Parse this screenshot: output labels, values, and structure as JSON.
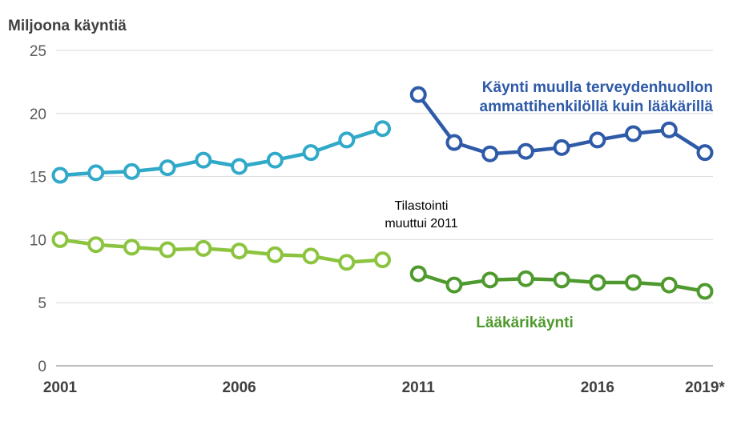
{
  "chart_data": {
    "type": "line",
    "ylabel": "Miljoona käyntiä",
    "ylim": [
      0,
      25
    ],
    "yticks": [
      0,
      5,
      10,
      15,
      20,
      25
    ],
    "xlim": [
      2001,
      2019
    ],
    "xtick_labels": [
      {
        "x": 2001,
        "label": "2001"
      },
      {
        "x": 2006,
        "label": "2006"
      },
      {
        "x": 2011,
        "label": "2011"
      },
      {
        "x": 2016,
        "label": "2016"
      },
      {
        "x": 2019,
        "label": "2019*"
      }
    ],
    "grid": true,
    "annotation": [
      "Tilastointi",
      "muuttui 2011"
    ],
    "series": [
      {
        "key": "nurse_old",
        "color": "#31a9c9",
        "x": [
          2001,
          2002,
          2003,
          2004,
          2005,
          2006,
          2007,
          2008,
          2009,
          2010
        ],
        "values": [
          15.1,
          15.3,
          15.4,
          15.7,
          16.3,
          15.8,
          16.3,
          16.9,
          17.9,
          18.8
        ]
      },
      {
        "key": "nurse_new",
        "name": "Käynti muulla terveydenhuollon ammattihenkilöllä kuin lääkärillä",
        "name_lines": [
          "Käynti muulla terveydenhuollon",
          "ammattihenkilöllä kuin lääkärillä"
        ],
        "color": "#2e5aa8",
        "x": [
          2011,
          2012,
          2013,
          2014,
          2015,
          2016,
          2017,
          2018,
          2019
        ],
        "values": [
          21.5,
          17.7,
          16.8,
          17.0,
          17.3,
          17.9,
          18.4,
          18.7,
          16.9
        ]
      },
      {
        "key": "doctor_old",
        "color": "#8cc43f",
        "x": [
          2001,
          2002,
          2003,
          2004,
          2005,
          2006,
          2007,
          2008,
          2009,
          2010
        ],
        "values": [
          10.0,
          9.6,
          9.4,
          9.2,
          9.3,
          9.1,
          8.8,
          8.7,
          8.2,
          8.4
        ]
      },
      {
        "key": "doctor_new",
        "name": "Lääkärikäynti",
        "color": "#4f9a2e",
        "x": [
          2011,
          2012,
          2013,
          2014,
          2015,
          2016,
          2017,
          2018,
          2019
        ],
        "values": [
          7.3,
          6.4,
          6.8,
          6.9,
          6.8,
          6.6,
          6.6,
          6.4,
          5.9
        ]
      }
    ]
  }
}
